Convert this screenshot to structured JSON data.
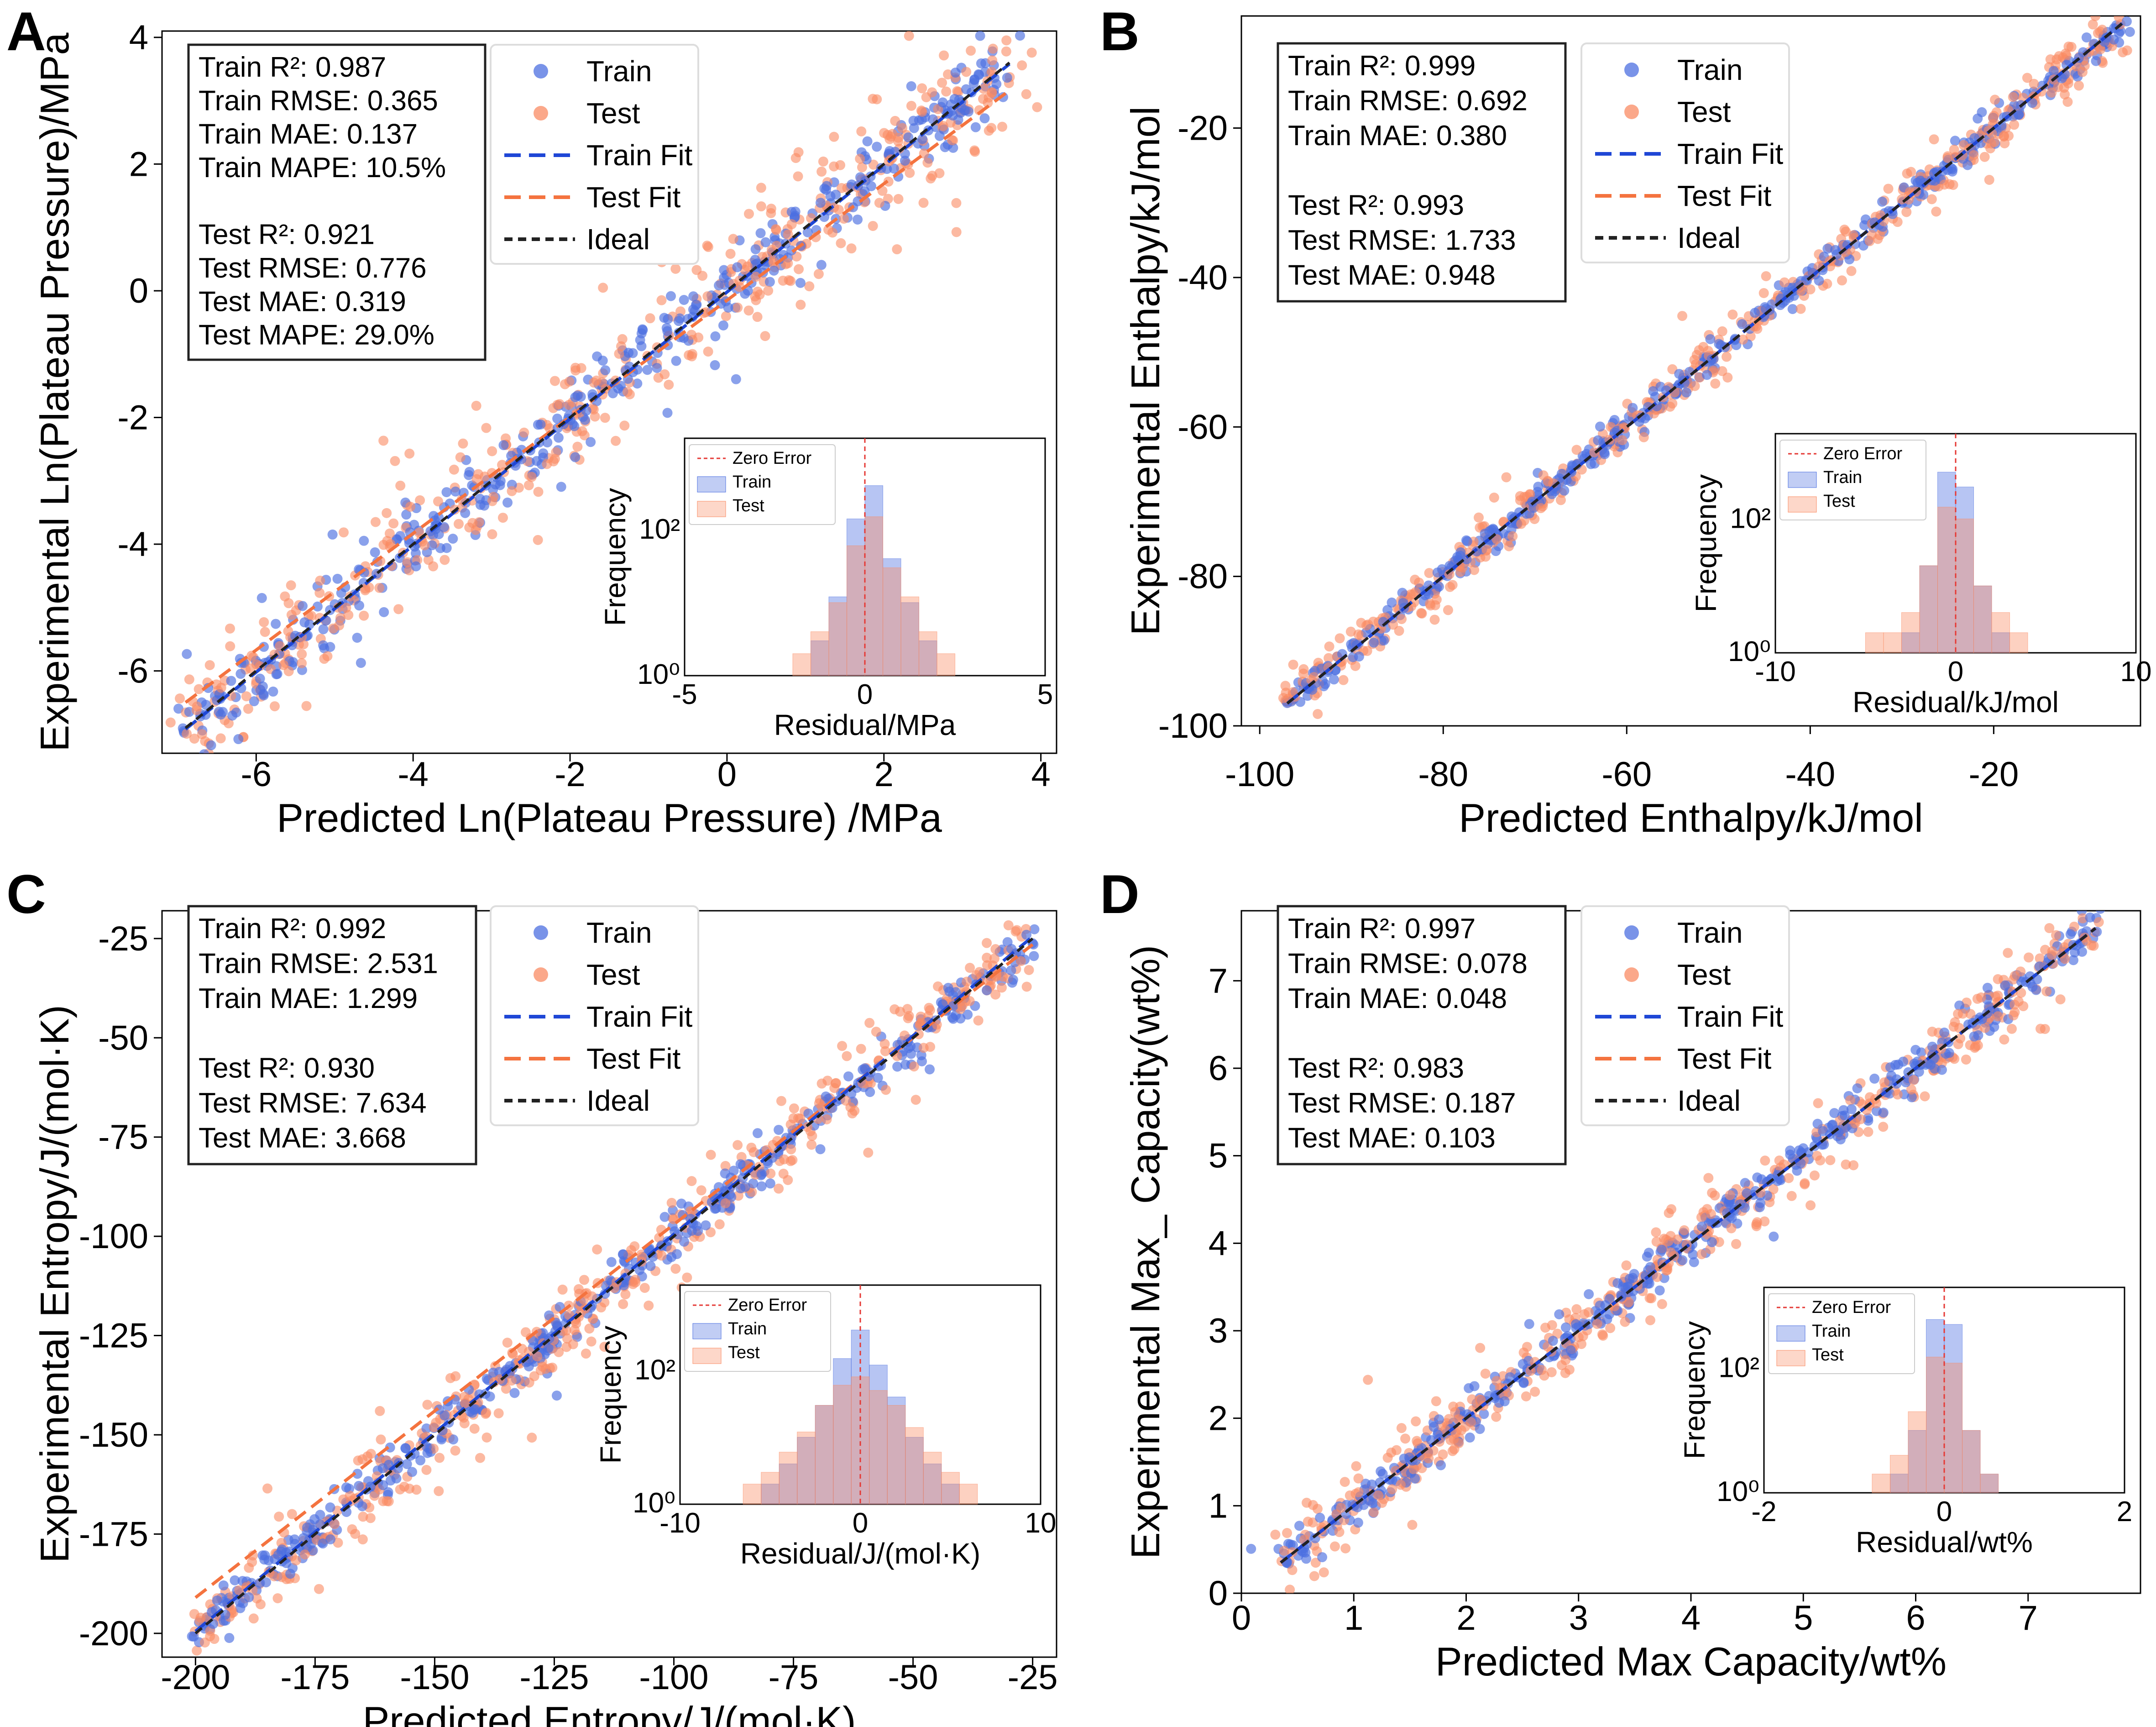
{
  "colors": {
    "train": "#4c6fe0",
    "test": "#fa8b63",
    "train_fit": "#1f47d6",
    "test_fit": "#f4733f",
    "ideal": "#222222",
    "zero_error": "#e53935"
  },
  "chart_data": [
    {
      "panel": "A",
      "type": "scatter",
      "xlabel": "Predicted Ln(Plateau Pressure) /MPa",
      "ylabel": "Experimental Ln(Plateau Pressure)/MPa",
      "xlim": [
        -7.2,
        4.2
      ],
      "ylim": [
        -7.3,
        4.1
      ],
      "xticks": [
        -6,
        -4,
        -2,
        0,
        2,
        4
      ],
      "yticks": [
        -6,
        -4,
        -2,
        0,
        2,
        4
      ],
      "xtick_labels": [
        "-6",
        "-4",
        "-2",
        "0",
        "2",
        "4"
      ],
      "ytick_labels": [
        "-6",
        "-4",
        "-2",
        "0",
        "2",
        "4"
      ],
      "range": [
        -6.9,
        3.6
      ],
      "train_fit": [
        1.0,
        -0.02
      ],
      "test_fit": [
        0.92,
        -0.15
      ],
      "spread": 0.3,
      "stats": [
        "Train R²: 0.987",
        "Train RMSE: 0.365",
        "Train MAE: 0.137",
        "Train MAPE: 10.5%",
        "",
        "Test R²: 0.921",
        "Test RMSE: 0.776",
        "Test MAE: 0.319",
        "Test MAPE: 29.0%"
      ],
      "legend": [
        "Train",
        "Test",
        "Train Fit",
        "Test Fit",
        "Ideal"
      ],
      "inset": {
        "xlabel": "Residual/MPa",
        "ylabel": "Frequency",
        "xlim": [
          -5,
          5
        ],
        "xtick_labels": [
          "-5",
          "0",
          "5"
        ],
        "ytick_labels": [
          "10⁰",
          "10²"
        ],
        "legend": [
          "Zero Error",
          "Train",
          "Test"
        ],
        "train_counts": {
          "bins": [
            -2.25,
            -1.75,
            -1.25,
            -0.75,
            -0.25,
            0.25,
            0.75,
            1.25,
            1.75,
            2.25
          ],
          "values": [
            1,
            1,
            3,
            12,
            140,
            400,
            40,
            10,
            3,
            1
          ]
        },
        "test_counts": {
          "bins": [
            -2.25,
            -1.75,
            -1.25,
            -0.75,
            -0.25,
            0.25,
            0.75,
            1.25,
            1.75,
            2.25,
            2.75
          ],
          "values": [
            1,
            2,
            4,
            10,
            60,
            150,
            30,
            12,
            4,
            2,
            1
          ]
        }
      }
    },
    {
      "panel": "B",
      "type": "scatter",
      "xlabel": "Predicted Enthalpy/kJ/mol",
      "ylabel": "Experimental Enthalpy/kJ/mol",
      "xlim": [
        -102,
        -4
      ],
      "ylim": [
        -100,
        -5
      ],
      "xticks": [
        -100,
        -80,
        -60,
        -40,
        -20
      ],
      "yticks": [
        -100,
        -80,
        -60,
        -40,
        -20
      ],
      "xtick_labels": [
        "-100",
        "-80",
        "-60",
        "-40",
        "-20"
      ],
      "ytick_labels": [
        "-100",
        "-80",
        "-60",
        "-40",
        "-20"
      ],
      "range": [
        -97,
        -6
      ],
      "train_fit": [
        1.0,
        0.0
      ],
      "test_fit": [
        1.0,
        0.0
      ],
      "spread": 1.0,
      "stats": [
        "Train R²: 0.999",
        "Train RMSE: 0.692",
        "Train MAE: 0.380",
        "",
        "Test R²: 0.993",
        "Test RMSE: 1.733",
        "Test MAE: 0.948"
      ],
      "legend": [
        "Train",
        "Test",
        "Train Fit",
        "Test Fit",
        "Ideal"
      ],
      "inset": {
        "xlabel": "Residual/kJ/mol",
        "ylabel": "Frequency",
        "xlim": [
          -10,
          10
        ],
        "xtick_labels": [
          "-10",
          "0",
          "10"
        ],
        "ytick_labels": [
          "10⁰",
          "10²"
        ],
        "legend": [
          "Zero Error",
          "Train",
          "Test"
        ],
        "train_counts": {
          "bins": [
            -2.5,
            -1.5,
            -0.5,
            0.5,
            1.5,
            2.5
          ],
          "values": [
            2,
            20,
            500,
            300,
            10,
            2
          ]
        },
        "test_counts": {
          "bins": [
            -7.5,
            -5.5,
            -4.5,
            -3.5,
            -2.5,
            -1.5,
            -0.5,
            0.5,
            1.5,
            2.5,
            3.5,
            4.5,
            6.5
          ],
          "values": [
            1,
            1,
            2,
            2,
            4,
            20,
            150,
            100,
            10,
            4,
            2,
            1,
            1
          ]
        }
      }
    },
    {
      "panel": "C",
      "type": "scatter",
      "xlabel": "Predicted Entropy/J/(mol·K)",
      "ylabel": "Experimental Entropy/J/(mol·K)",
      "xlim": [
        -207,
        -20
      ],
      "ylim": [
        -206,
        -18
      ],
      "xticks": [
        -200,
        -175,
        -150,
        -125,
        -100,
        -75,
        -50,
        -25
      ],
      "yticks": [
        -200,
        -175,
        -150,
        -125,
        -100,
        -75,
        -50,
        -25
      ],
      "xtick_labels": [
        "-200",
        "-175",
        "-150",
        "-125",
        "-100",
        "-75",
        "-50",
        "-25"
      ],
      "ytick_labels": [
        "-200",
        "-175",
        "-150",
        "-125",
        "-100",
        "-75",
        "-50",
        "-25"
      ],
      "range": [
        -200,
        -25
      ],
      "train_fit": [
        1.0,
        0.5
      ],
      "test_fit": [
        0.94,
        -3.0
      ],
      "spread": 3.0,
      "stats": [
        "Train R²: 0.992",
        "Train RMSE: 2.531",
        "Train MAE: 1.299",
        "",
        "Test R²: 0.930",
        "Test RMSE: 7.634",
        "Test MAE: 3.668"
      ],
      "legend": [
        "Train",
        "Test",
        "Train Fit",
        "Test Fit",
        "Ideal"
      ],
      "inset": {
        "xlabel": "Residual/J/(mol·K)",
        "ylabel": "Frequency",
        "xlim": [
          -10,
          10
        ],
        "xtick_labels": [
          "-10",
          "0",
          "10"
        ],
        "ytick_labels": [
          "10⁰",
          "10²"
        ],
        "legend": [
          "Zero Error",
          "Train",
          "Test"
        ],
        "train_counts": {
          "bins": [
            -8,
            -6,
            -5,
            -4,
            -3,
            -2,
            -1,
            0,
            1,
            2,
            3,
            4,
            5,
            6
          ],
          "values": [
            1,
            1,
            2,
            4,
            10,
            30,
            150,
            400,
            120,
            40,
            10,
            4,
            2,
            1
          ]
        },
        "test_counts": {
          "bins": [
            -8.5,
            -7,
            -6,
            -5,
            -4,
            -3,
            -2,
            -1,
            0,
            1,
            2,
            3,
            4,
            5,
            6,
            7,
            8,
            9.5
          ],
          "values": [
            1,
            1,
            2,
            3,
            6,
            12,
            30,
            60,
            80,
            50,
            30,
            14,
            6,
            3,
            2,
            1,
            1,
            1
          ]
        }
      }
    },
    {
      "panel": "D",
      "type": "scatter",
      "xlabel": "Predicted Max Capacity/wt%",
      "ylabel": "Experimental Max_ Capacity(wt%)",
      "xlim": [
        0,
        8.0
      ],
      "ylim": [
        0,
        7.8
      ],
      "xticks": [
        0,
        1,
        2,
        3,
        4,
        5,
        6,
        7
      ],
      "yticks": [
        0,
        1,
        2,
        3,
        4,
        5,
        6,
        7
      ],
      "xtick_labels": [
        "0",
        "1",
        "2",
        "3",
        "4",
        "5",
        "6",
        "7"
      ],
      "ytick_labels": [
        "0",
        "1",
        "2",
        "3",
        "4",
        "5",
        "6",
        "7"
      ],
      "range": [
        0.35,
        7.6
      ],
      "train_fit": [
        1.0,
        0.0
      ],
      "test_fit": [
        1.0,
        0.0
      ],
      "spread": 0.12,
      "stats": [
        "Train R²: 0.997",
        "Train RMSE: 0.078",
        "Train MAE: 0.048",
        "",
        "Test R²: 0.983",
        "Test RMSE: 0.187",
        "Test MAE: 0.103"
      ],
      "legend": [
        "Train",
        "Test",
        "Train Fit",
        "Test Fit",
        "Ideal"
      ],
      "inset": {
        "xlabel": "Residual/wt%",
        "ylabel": "Frequency",
        "xlim": [
          -2,
          2
        ],
        "xtick_labels": [
          "-2",
          "0",
          "2"
        ],
        "ytick_labels": [
          "10⁰",
          "10²"
        ],
        "legend": [
          "Zero Error",
          "Train",
          "Test"
        ],
        "train_counts": {
          "bins": [
            -0.5,
            -0.3,
            -0.1,
            0.1,
            0.3,
            0.5,
            0.9
          ],
          "values": [
            2,
            10,
            600,
            500,
            10,
            2,
            1
          ]
        },
        "test_counts": {
          "bins": [
            -1.1,
            -0.9,
            -0.7,
            -0.5,
            -0.3,
            -0.1,
            0.1,
            0.3,
            0.5
          ],
          "values": [
            1,
            1,
            2,
            4,
            20,
            150,
            120,
            10,
            2
          ]
        }
      }
    }
  ],
  "panel_letters": [
    "A",
    "B",
    "C",
    "D"
  ]
}
